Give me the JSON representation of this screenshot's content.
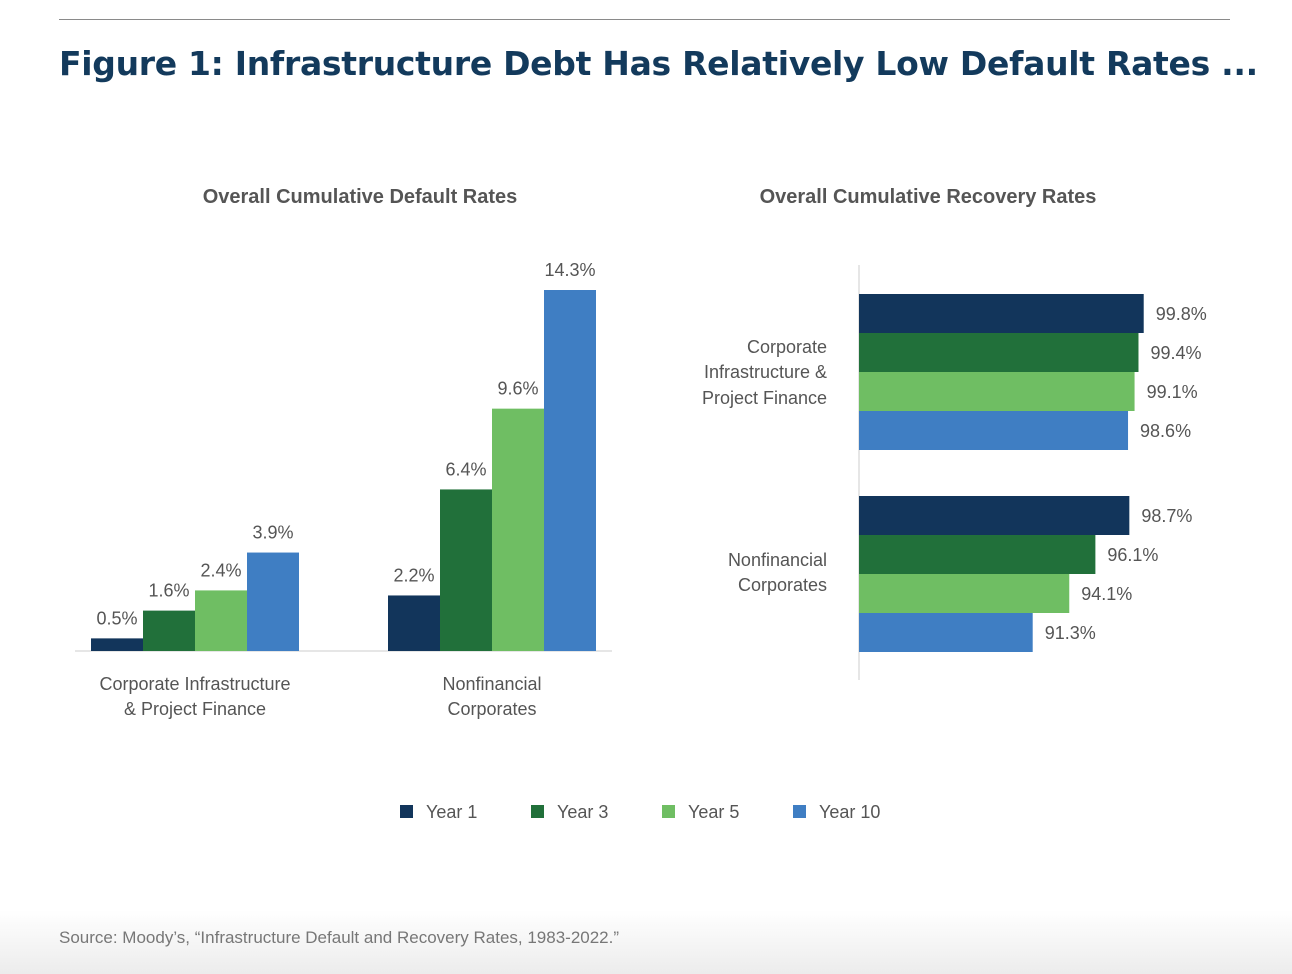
{
  "title": "Figure 1: Infrastructure Debt Has Relatively Low Default Rates ...",
  "source": "Source: Moody’s, “Infrastructure Default and Recovery Rates, 1983-2022.”",
  "legend": [
    {
      "label": "Year 1",
      "color": "#12355b"
    },
    {
      "label": "Year 3",
      "color": "#21703a"
    },
    {
      "label": "Year 5",
      "color": "#6fbe63"
    },
    {
      "label": "Year 10",
      "color": "#3f7ec3"
    }
  ],
  "chart_data": [
    {
      "type": "bar",
      "orientation": "vertical",
      "title": "Overall Cumulative Default Rates",
      "categories": [
        [
          "Corporate Infrastructure",
          "& Project Finance"
        ],
        [
          "Nonfinancial",
          "Corporates"
        ]
      ],
      "series": [
        {
          "name": "Year 1",
          "values": [
            0.5,
            2.2
          ]
        },
        {
          "name": "Year 3",
          "values": [
            1.6,
            6.4
          ]
        },
        {
          "name": "Year 5",
          "values": [
            2.4,
            9.6
          ]
        },
        {
          "name": "Year 10",
          "values": [
            3.9,
            14.3
          ]
        }
      ],
      "labels": [
        [
          "0.5%",
          "2.2%"
        ],
        [
          "1.6%",
          "6.4%"
        ],
        [
          "2.4%",
          "9.6%"
        ],
        [
          "3.9%",
          "14.3%"
        ]
      ],
      "unit": "%",
      "ylim": [
        0,
        14.3
      ],
      "grid": false
    },
    {
      "type": "bar",
      "orientation": "horizontal",
      "title": "Overall Cumulative Recovery Rates",
      "categories": [
        [
          "Corporate",
          "Infrastructure &",
          "Project Finance"
        ],
        [
          "Nonfinancial",
          "Corporates"
        ]
      ],
      "series": [
        {
          "name": "Year 1",
          "values": [
            99.8,
            98.7
          ]
        },
        {
          "name": "Year 3",
          "values": [
            99.4,
            96.1
          ]
        },
        {
          "name": "Year 5",
          "values": [
            99.1,
            94.1
          ]
        },
        {
          "name": "Year 10",
          "values": [
            98.6,
            91.3
          ]
        }
      ],
      "labels": [
        [
          "99.8%",
          "98.7%"
        ],
        [
          "99.4%",
          "96.1%"
        ],
        [
          "99.1%",
          "94.1%"
        ],
        [
          "98.6%",
          "91.3%"
        ]
      ],
      "unit": "%",
      "xlim": [
        78,
        100
      ],
      "grid": false
    }
  ]
}
